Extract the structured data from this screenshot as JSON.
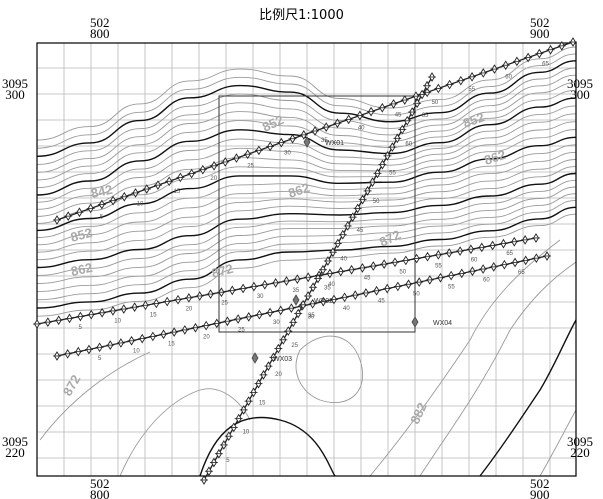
{
  "title": "比例尺1:1000",
  "coords": {
    "top_left": [
      "502",
      "800"
    ],
    "top_right": [
      "502",
      "900"
    ],
    "left_top": [
      "3095",
      "300"
    ],
    "right_top": [
      "3095",
      "300"
    ],
    "left_bottom": [
      "3095",
      "220"
    ],
    "right_bottom": [
      "3095",
      "220"
    ],
    "bottom_left": [
      "502",
      "800"
    ],
    "bottom_right": [
      "502",
      "900"
    ]
  },
  "contour_labels": [
    "852",
    "852",
    "862",
    "862",
    "852",
    "862",
    "872",
    "872",
    "872",
    "882",
    "842"
  ],
  "wells": [
    "WX01",
    "WX02",
    "WX03",
    "WX04"
  ],
  "station_labels": [
    "5",
    "10",
    "15",
    "20",
    "25",
    "30",
    "35",
    "40",
    "45",
    "50",
    "55",
    "60",
    "65"
  ],
  "colors": {
    "grid": "#b8b8b8",
    "contour": "#9a9a9a",
    "index_contour": "#111111",
    "survey_line": "#222222"
  }
}
